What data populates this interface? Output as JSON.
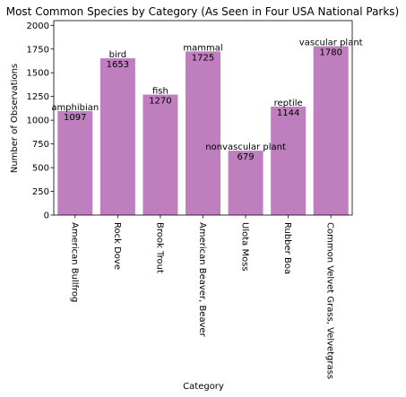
{
  "chart_data": {
    "type": "bar",
    "title": "Most Common Species by Category (As Seen in Four USA National Parks)",
    "xlabel": "Category",
    "ylabel": "Number of Observations",
    "ylim": [
      0,
      2050
    ],
    "yticks": [
      0,
      250,
      500,
      750,
      1000,
      1250,
      1500,
      1750,
      2000
    ],
    "grid": false,
    "bar_color": "#bf7fbf",
    "categories": [
      "American Bullfrog",
      "Rock Dove",
      "Brook Trout",
      "American Beaver, Beaver",
      "Ulota Moss",
      "Rubber Boa",
      "Common Velvet Grass, Velvetgrass"
    ],
    "groups": [
      "amphibian",
      "bird",
      "fish",
      "mammal",
      "nonvascular plant",
      "reptile",
      "vascular plant"
    ],
    "values": [
      1097,
      1653,
      1270,
      1725,
      679,
      1144,
      1780
    ]
  }
}
